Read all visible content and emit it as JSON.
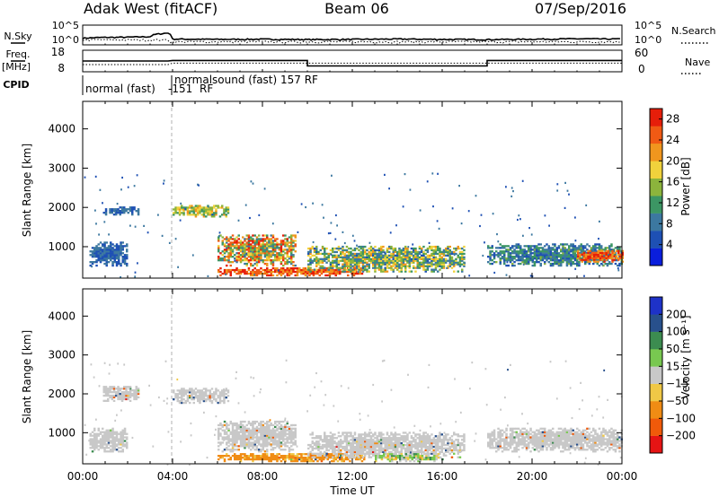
{
  "header": {
    "station": "Adak West (fitACF)",
    "beam": "Beam 06",
    "date": "07/Sep/2016"
  },
  "left_labels": {
    "nsky": "N.Sky",
    "freq": "Freq.",
    "freq_unit": "[MHz]",
    "cpid": "CPID"
  },
  "right_labels": {
    "nsearch": "N.Search",
    "nave": "Nave"
  },
  "cpid_labels": {
    "seg1": "normal (fast)",
    "seg1_id": "-151",
    "seg1_rf": "RF",
    "seg2": "normalsound (fast) 157 RF"
  },
  "x_axis": {
    "title": "Time UT",
    "ticks": [
      "00:00",
      "04:00",
      "08:00",
      "12:00",
      "16:00",
      "20:00",
      "00:00"
    ]
  },
  "colors": {
    "power": [
      "#0a1edc",
      "#1e50b4",
      "#3c78a0",
      "#3c9664",
      "#8cb43c",
      "#f0d23c",
      "#f0961e",
      "#f05a14",
      "#e61e0a"
    ],
    "velocity": [
      "#e61414",
      "#f05a0a",
      "#f08c14",
      "#f0c846",
      "#c8c8c8",
      "#78c850",
      "#3c8c50",
      "#28508c",
      "#1e32c8"
    ]
  },
  "chart_data": [
    {
      "type": "line",
      "panel": "noise",
      "left_axis": {
        "label": "N.Sky",
        "ticks": [
          "10^5",
          "10^0"
        ],
        "scale": "log"
      },
      "right_axis": {
        "label": "N.Search",
        "ticks": [
          "10^5",
          "10^0"
        ],
        "scale": "log"
      },
      "series": [
        {
          "x_hours": [
            0,
            1,
            2,
            3,
            3.3,
            3.8,
            4.0,
            6,
            8,
            10,
            12,
            14,
            16,
            18,
            20,
            22,
            24
          ],
          "y": [
            20,
            35,
            40,
            60,
            400,
            900,
            10,
            8,
            9,
            7,
            8,
            10,
            8,
            7,
            9,
            12,
            10
          ]
        }
      ]
    },
    {
      "type": "line",
      "panel": "frequency",
      "left_axis": {
        "label": "Freq. [MHz]",
        "ticks": [
          18,
          8
        ],
        "ylim": [
          6,
          19
        ]
      },
      "right_axis": {
        "label": "Nave",
        "ticks": [
          60,
          0
        ],
        "ylim": [
          0,
          60
        ]
      },
      "series": [
        {
          "x_hours": [
            0,
            3.8,
            4.0,
            10.0,
            10.0,
            18.0,
            18.0,
            24
          ],
          "y": [
            12.5,
            12.5,
            12.8,
            12.8,
            9.5,
            9.5,
            12.8,
            12.8
          ]
        },
        {
          "x_hours": [
            0,
            3.8,
            4.0,
            24
          ],
          "y": [
            20,
            20,
            24,
            24
          ]
        }
      ]
    },
    {
      "type": "heatmap",
      "panel": "power",
      "ylabel": "Slant Range [km]",
      "yticks": [
        1000,
        2000,
        3000,
        4000
      ],
      "ylim": [
        200,
        4700
      ],
      "colorbar": {
        "label": "Power [dB]",
        "ticks": [
          4,
          8,
          12,
          16,
          20,
          24,
          28
        ],
        "range": [
          0,
          30
        ]
      },
      "regions": [
        {
          "t": [
            0.3,
            2.0
          ],
          "r": [
            500,
            1100
          ],
          "level": [
            4,
            10
          ]
        },
        {
          "t": [
            0.9,
            2.5
          ],
          "r": [
            1800,
            2000
          ],
          "level": [
            4,
            10
          ]
        },
        {
          "t": [
            4.0,
            6.5
          ],
          "r": [
            1750,
            2050
          ],
          "level": [
            10,
            22
          ]
        },
        {
          "t": [
            6.0,
            9.5
          ],
          "r": [
            500,
            1300
          ],
          "level": [
            8,
            30
          ]
        },
        {
          "t": [
            6.0,
            12.5
          ],
          "r": [
            250,
            450
          ],
          "level": [
            20,
            30
          ]
        },
        {
          "t": [
            10.0,
            17.0
          ],
          "r": [
            350,
            1000
          ],
          "level": [
            6,
            22
          ]
        },
        {
          "t": [
            18.0,
            24.0
          ],
          "r": [
            500,
            1050
          ],
          "level": [
            4,
            14
          ]
        },
        {
          "t": [
            22.0,
            24.0
          ],
          "r": [
            600,
            900
          ],
          "level": [
            20,
            30
          ]
        }
      ]
    },
    {
      "type": "heatmap",
      "panel": "velocity",
      "ylabel": "Slant Range [km]",
      "yticks": [
        1000,
        2000,
        3000,
        4000
      ],
      "ylim": [
        200,
        4700
      ],
      "colorbar": {
        "label": "Velocity [m s⁻¹]",
        "ticks": [
          200,
          100,
          50,
          15,
          -15,
          -50,
          -100,
          -200
        ],
        "range": [
          -250,
          250
        ]
      },
      "regions": [
        {
          "t": [
            0.3,
            2.0
          ],
          "r": [
            500,
            1100
          ],
          "v": [
            -15,
            15
          ]
        },
        {
          "t": [
            0.9,
            2.5
          ],
          "r": [
            1800,
            2200
          ],
          "v": [
            -15,
            15
          ]
        },
        {
          "t": [
            4.0,
            6.5
          ],
          "r": [
            1750,
            2150
          ],
          "v": [
            -15,
            15
          ]
        },
        {
          "t": [
            6.0,
            9.5
          ],
          "r": [
            500,
            1300
          ],
          "v": [
            -15,
            15
          ]
        },
        {
          "t": [
            6.0,
            12.5
          ],
          "r": [
            250,
            450
          ],
          "v": [
            -100,
            -40
          ]
        },
        {
          "t": [
            10.0,
            17.0
          ],
          "r": [
            350,
            1000
          ],
          "v": [
            -15,
            15
          ]
        },
        {
          "t": [
            13.0,
            16.0
          ],
          "r": [
            250,
            450
          ],
          "v": [
            -50,
            60
          ]
        },
        {
          "t": [
            18.0,
            24.0
          ],
          "r": [
            500,
            1100
          ],
          "v": [
            -15,
            15
          ]
        }
      ]
    }
  ]
}
